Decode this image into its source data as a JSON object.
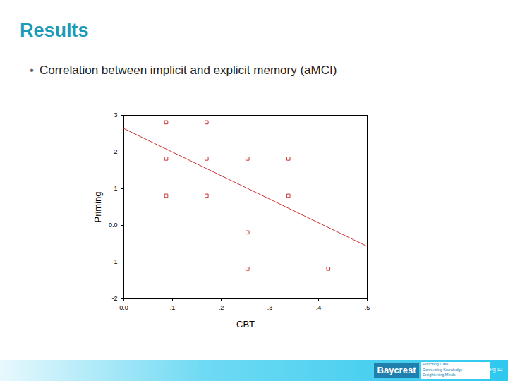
{
  "page": {
    "heading": "Results",
    "bullet": "Correlation between implicit and explicit memory (aMCI)",
    "footer": {
      "logo": "Baycrest",
      "tagline": [
        "Enriching Care",
        "Connecting Knowledge",
        "Enlightening Minds"
      ],
      "page": "Pg 12"
    }
  },
  "chart_data": {
    "type": "scatter",
    "xlabel": "CBT",
    "ylabel": "Priming",
    "x": [
      0.087,
      0.17,
      0.087,
      0.17,
      0.254,
      0.338,
      0.087,
      0.17,
      0.338,
      0.254,
      0.254,
      0.42
    ],
    "values": [
      2.81,
      2.81,
      1.82,
      1.82,
      1.82,
      1.82,
      0.81,
      0.81,
      0.81,
      -0.19,
      -1.18,
      -1.18
    ],
    "color": "#cc3333",
    "marker": "square",
    "fit_line": {
      "x": [
        0,
        0.5
      ],
      "values": [
        2.64,
        -0.57
      ],
      "color": "#cc3333",
      "line_style": "solid"
    },
    "xlim": [
      0,
      0.5
    ],
    "xticks": [
      {
        "value": 0,
        "label": "0.0"
      },
      {
        "value": 0.1,
        "label": ".1"
      },
      {
        "value": 0.2,
        "label": ".2"
      },
      {
        "value": 0.3,
        "label": ".3"
      },
      {
        "value": 0.4,
        "label": ".4"
      },
      {
        "value": 0.5,
        "label": ".5"
      }
    ],
    "ylim": [
      -2,
      3
    ],
    "yticks": [
      -2,
      -1,
      {
        "value": 0,
        "label": "0.0"
      },
      1,
      2,
      3
    ],
    "grid": false
  }
}
